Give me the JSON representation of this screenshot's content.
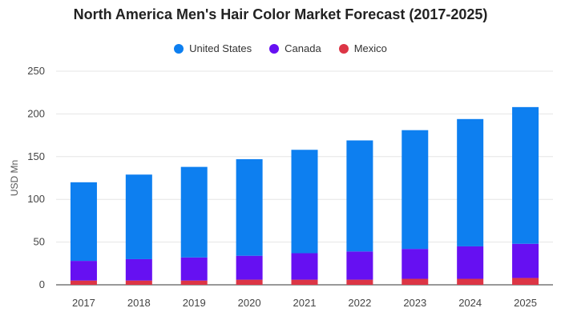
{
  "chart_data": {
    "type": "bar",
    "stacked": true,
    "title": "North America Men's Hair Color Market Forecast (2017-2025)",
    "xlabel": "",
    "ylabel": "USD Mn",
    "ylim": [
      0,
      250
    ],
    "yticks": [
      0,
      50,
      100,
      150,
      200,
      250
    ],
    "grid": true,
    "legend_position": "top",
    "categories": [
      "2017",
      "2018",
      "2019",
      "2020",
      "2021",
      "2022",
      "2023",
      "2024",
      "2025"
    ],
    "series": [
      {
        "name": "Mexico",
        "color": "#dc3545",
        "values": [
          5,
          5,
          5,
          6,
          6,
          6,
          7,
          7,
          8
        ]
      },
      {
        "name": "Canada",
        "color": "#6610f2",
        "values": [
          23,
          25,
          27,
          28,
          31,
          33,
          35,
          38,
          40
        ]
      },
      {
        "name": "United States",
        "color": "#0d7ff0",
        "values": [
          92,
          99,
          106,
          113,
          121,
          130,
          139,
          149,
          160
        ]
      }
    ],
    "legend_order": [
      "United States",
      "Canada",
      "Mexico"
    ]
  }
}
